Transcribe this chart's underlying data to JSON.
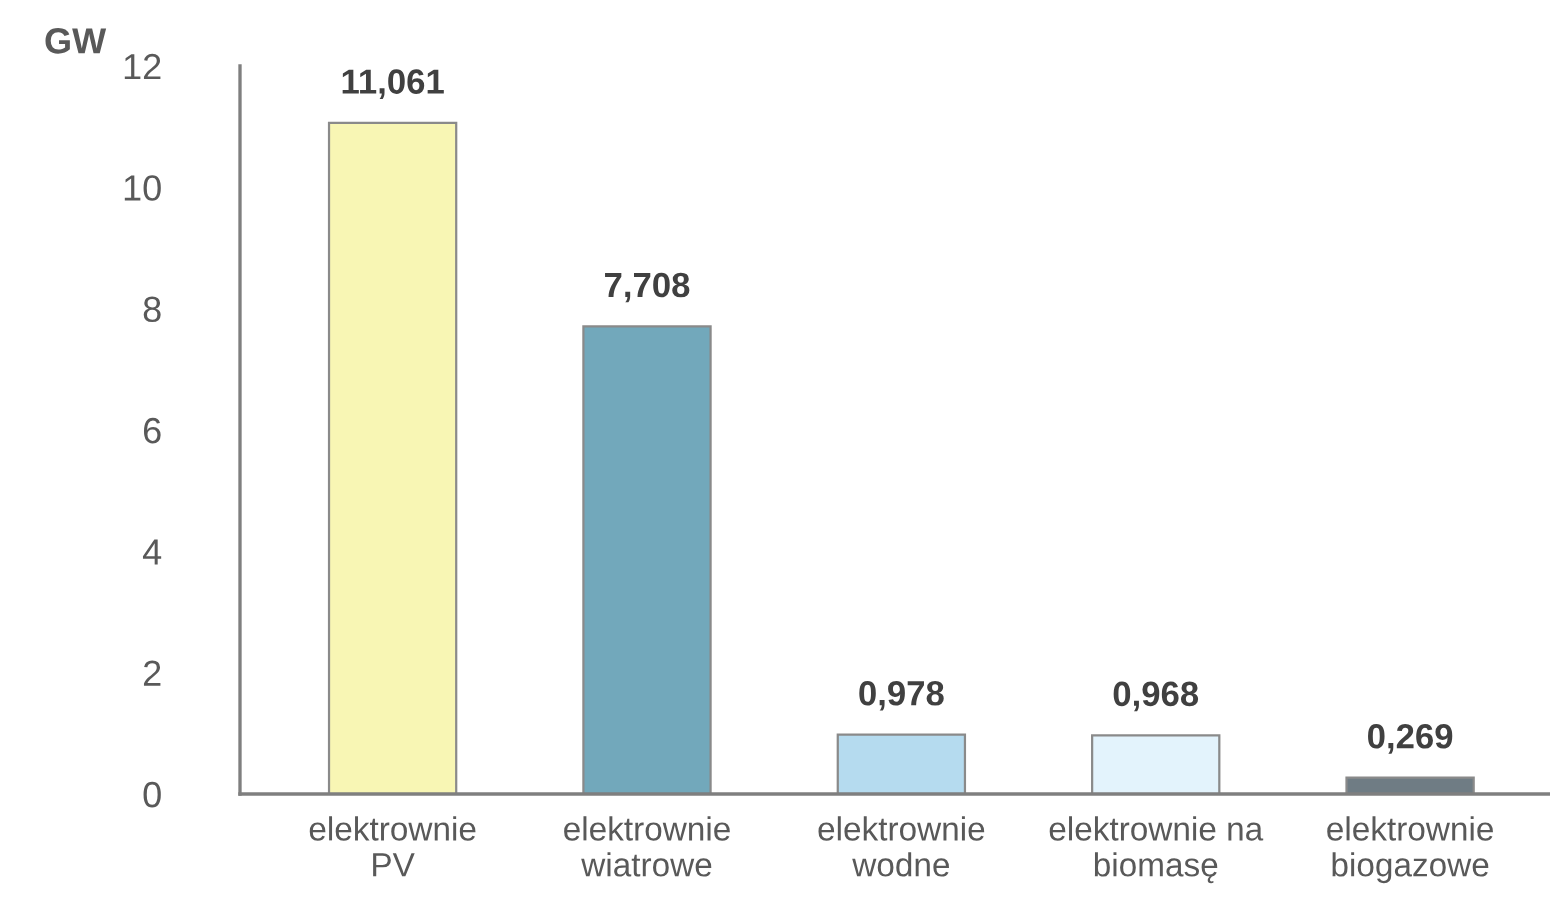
{
  "chart_data": {
    "type": "bar",
    "ylabel": "GW",
    "categories": [
      "elektrownie\nPV",
      "elektrownie\nwiatrowe",
      "elektrownie\nwodne",
      "elektrownie na\nbiomasę",
      "elektrownie\nbiogazowe"
    ],
    "values": [
      11.061,
      7.708,
      0.978,
      0.968,
      0.269
    ],
    "value_labels": [
      "11,061",
      "7,708",
      "0,978",
      "0,968",
      "0,269"
    ],
    "colors": [
      "#f8f6b4",
      "#72a8bb",
      "#b5dbef",
      "#e3f3fc",
      "#6f7c84"
    ],
    "ylim": [
      0,
      12
    ],
    "yticks": [
      0,
      2,
      4,
      6,
      8,
      10,
      12
    ],
    "grid": false
  }
}
